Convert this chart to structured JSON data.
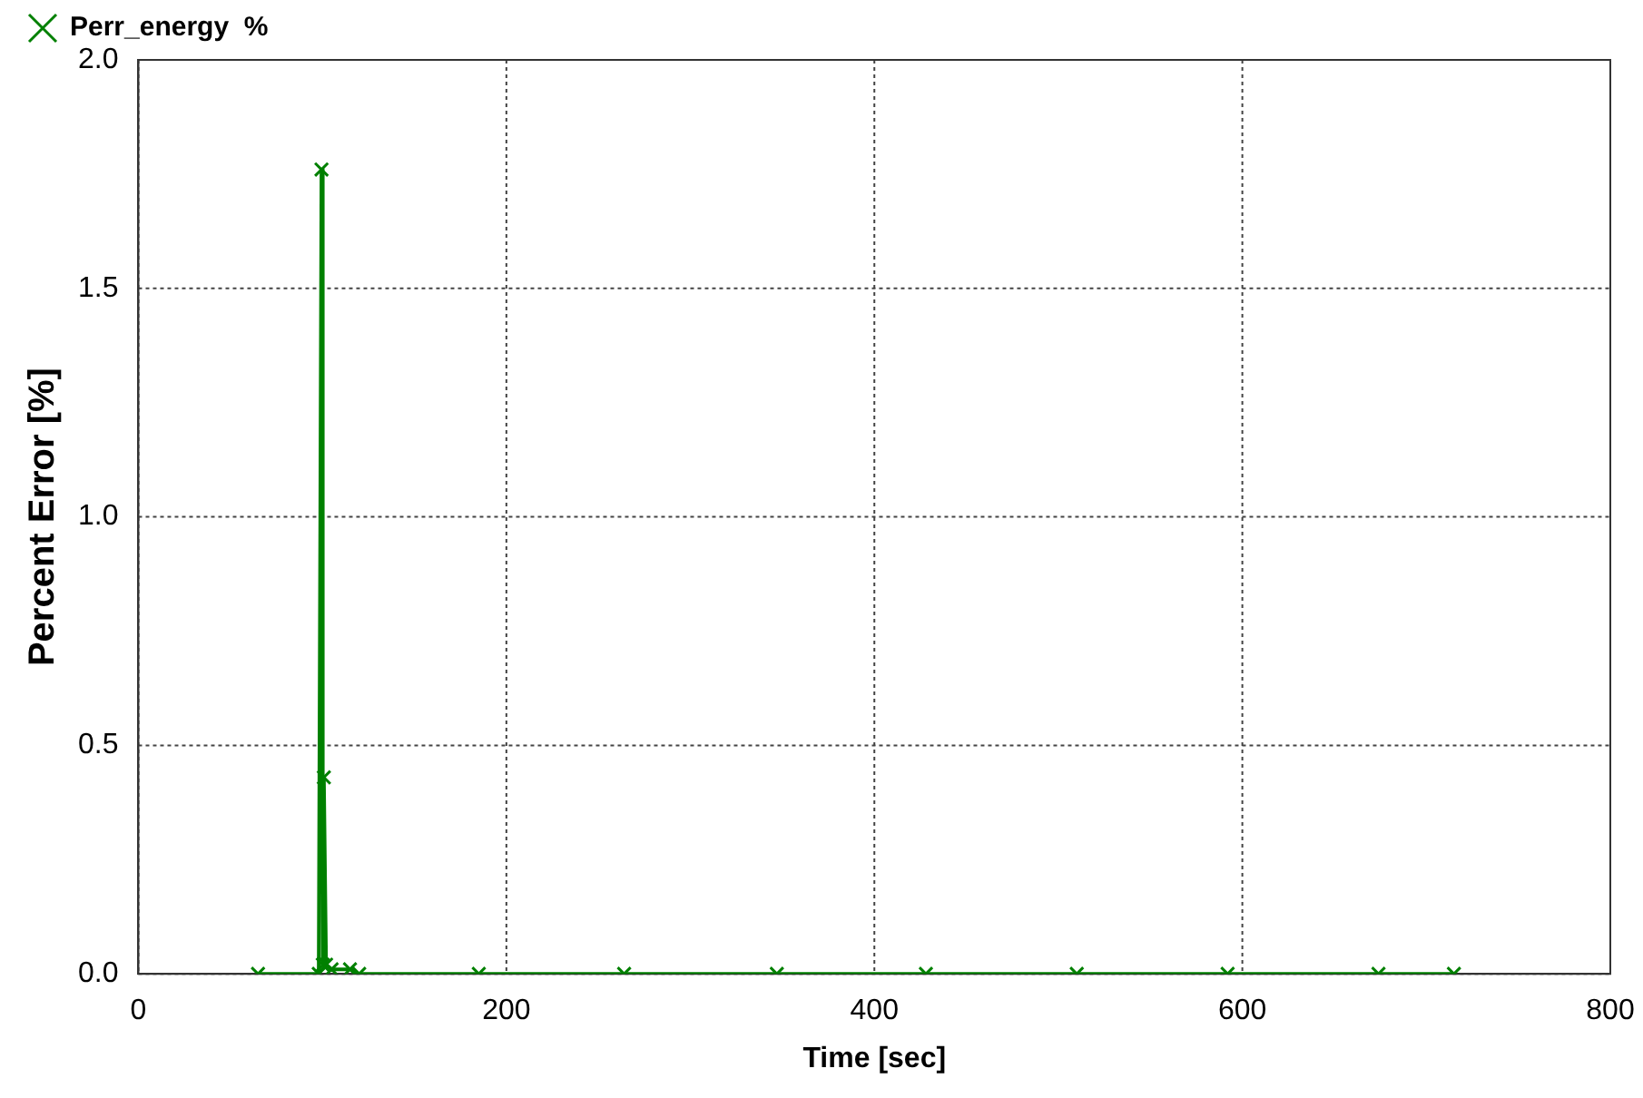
{
  "chart_data": {
    "type": "line",
    "xlabel": "Time [sec]",
    "ylabel": "Percent Error [%]",
    "x": [
      65,
      98,
      99.5,
      100.2,
      100.8,
      102,
      105,
      115,
      120,
      185,
      264,
      347,
      428,
      510,
      592,
      674,
      715
    ],
    "series": [
      {
        "name": "Perr_energy  %",
        "color": "#008000",
        "values": [
          0,
          0,
          1.76,
          0.02,
          0.43,
          0.02,
          0.01,
          0.01,
          0,
          0,
          0,
          0,
          0,
          0,
          0,
          0,
          0
        ]
      }
    ],
    "xlim": [
      0,
      800
    ],
    "xticks": [
      0,
      200,
      400,
      600,
      800
    ],
    "ylim": [
      0,
      2
    ],
    "yticks": [
      {
        "value": 0,
        "label": "0.0"
      },
      {
        "value": 0.5,
        "label": "0.5"
      },
      {
        "value": 1,
        "label": "1.0"
      },
      {
        "value": 1.5,
        "label": "1.5"
      },
      {
        "value": 2,
        "label": "2.0"
      }
    ],
    "grid": true,
    "legend": "top left",
    "marker": "cross",
    "line_style": "solid"
  }
}
